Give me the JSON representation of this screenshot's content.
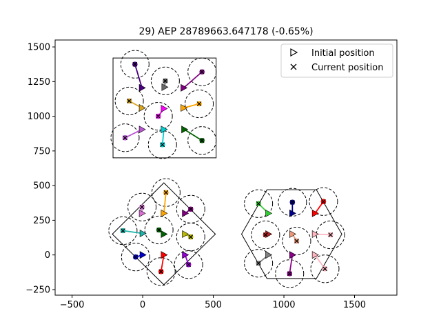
{
  "chart_data": {
    "type": "scatter",
    "title": "29) AEP 28789663.647178  (-0.65%)",
    "xlabel": "",
    "ylabel": "",
    "xlim": [
      -620,
      1800
    ],
    "ylim": [
      -290,
      1550
    ],
    "xticks": [
      -500,
      0,
      500,
      1000,
      1500
    ],
    "yticks": [
      -250,
      0,
      250,
      500,
      750,
      1000,
      1250,
      1500
    ],
    "xtick_labels": [
      "−500",
      "0",
      "500",
      "1000",
      "1500"
    ],
    "ytick_labels": [
      "−250",
      "0",
      "250",
      "500",
      "750",
      "1000",
      "1250",
      "1500"
    ],
    "grid": false,
    "legend": {
      "placement": "top-right",
      "entries": [
        {
          "label": "Initial position",
          "marker": "triangle-right"
        },
        {
          "label": "Current position",
          "marker": "x"
        }
      ]
    },
    "turbine_radius": 100,
    "boundaries": [
      {
        "name": "square",
        "points": [
          [
            -210,
            1420
          ],
          [
            520,
            1420
          ],
          [
            520,
            700
          ],
          [
            -210,
            700
          ]
        ]
      },
      {
        "name": "diamond",
        "points": [
          [
            150,
            520
          ],
          [
            515,
            150
          ],
          [
            150,
            -215
          ],
          [
            -215,
            150
          ]
        ]
      },
      {
        "name": "hexagon",
        "points": [
          [
            880,
            470
          ],
          [
            1230,
            470
          ],
          [
            1410,
            150
          ],
          [
            1230,
            -170
          ],
          [
            880,
            -170
          ],
          [
            700,
            150
          ]
        ]
      }
    ],
    "turbines": [
      {
        "initial": [
          -5,
          1205
        ],
        "current": [
          -55,
          1375
        ],
        "color": "#4b0082"
      },
      {
        "initial": [
          155,
          1210
        ],
        "current": [
          160,
          1255
        ],
        "color": "#696969"
      },
      {
        "initial": [
          290,
          1205
        ],
        "current": [
          420,
          1320
        ],
        "color": "#800080"
      },
      {
        "initial": [
          -5,
          1060
        ],
        "current": [
          -95,
          1110
        ],
        "color": "#daa520"
      },
      {
        "initial": [
          150,
          1055
        ],
        "current": [
          110,
          1000
        ],
        "color": "#ff00ff"
      },
      {
        "initial": [
          290,
          1060
        ],
        "current": [
          400,
          1090
        ],
        "color": "#ffa500"
      },
      {
        "initial": [
          -5,
          905
        ],
        "current": [
          -125,
          845
        ],
        "color": "#ba55d3"
      },
      {
        "initial": [
          150,
          905
        ],
        "current": [
          140,
          795
        ],
        "color": "#00ced1"
      },
      {
        "initial": [
          295,
          905
        ],
        "current": [
          420,
          825
        ],
        "color": "#006400"
      },
      {
        "initial": [
          150,
          300
        ],
        "current": [
          165,
          450
        ],
        "color": "#ffa500"
      },
      {
        "initial": [
          -5,
          300
        ],
        "current": [
          -5,
          345
        ],
        "color": "#da70d6"
      },
      {
        "initial": [
          300,
          300
        ],
        "current": [
          340,
          330
        ],
        "color": "#800080"
      },
      {
        "initial": [
          0,
          155
        ],
        "current": [
          -140,
          175
        ],
        "color": "#20b2aa"
      },
      {
        "initial": [
          150,
          150
        ],
        "current": [
          115,
          180
        ],
        "color": "#006400"
      },
      {
        "initial": [
          300,
          150
        ],
        "current": [
          340,
          130
        ],
        "color": "#b8b800"
      },
      {
        "initial": [
          0,
          0
        ],
        "current": [
          -50,
          -15
        ],
        "color": "#0000cd"
      },
      {
        "initial": [
          150,
          0
        ],
        "current": [
          130,
          -120
        ],
        "color": "#ff0000"
      },
      {
        "initial": [
          300,
          0
        ],
        "current": [
          325,
          -70
        ],
        "color": "#9400d3"
      },
      {
        "initial": [
          890,
          300
        ],
        "current": [
          820,
          370
        ],
        "color": "#32cd32"
      },
      {
        "initial": [
          1060,
          300
        ],
        "current": [
          1060,
          380
        ],
        "color": "#00008b"
      },
      {
        "initial": [
          1220,
          300
        ],
        "current": [
          1280,
          385
        ],
        "color": "#ff0000"
      },
      {
        "initial": [
          890,
          150
        ],
        "current": [
          870,
          145
        ],
        "color": "#b22222"
      },
      {
        "initial": [
          1060,
          150
        ],
        "current": [
          1090,
          100
        ],
        "color": "#e9967a"
      },
      {
        "initial": [
          1220,
          150
        ],
        "current": [
          1330,
          145
        ],
        "color": "#ffb6c1"
      },
      {
        "initial": [
          890,
          0
        ],
        "current": [
          820,
          -60
        ],
        "color": "#808080"
      },
      {
        "initial": [
          1060,
          0
        ],
        "current": [
          1040,
          -135
        ],
        "color": "#8b008b"
      },
      {
        "initial": [
          1220,
          0
        ],
        "current": [
          1290,
          -100
        ],
        "color": "#ffb6c1"
      }
    ]
  }
}
